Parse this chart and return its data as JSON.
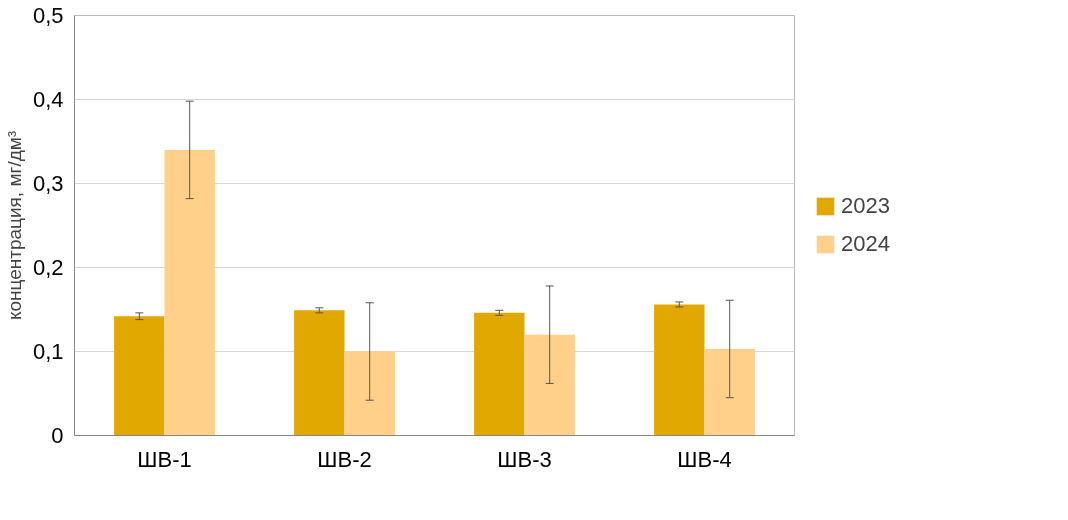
{
  "chart_data": {
    "type": "bar",
    "ylabel": "концентрация, мг/дм³",
    "categories": [
      "ШВ-1",
      "ШВ-2",
      "ШВ-3",
      "ШВ-4"
    ],
    "series": [
      {
        "name": "2023",
        "color": "#e0a800",
        "values": [
          0.142,
          0.149,
          0.146,
          0.156
        ],
        "errors": [
          0.004,
          0.003,
          0.003,
          0.003
        ]
      },
      {
        "name": "2024",
        "color": "#ffd08a",
        "values": [
          0.34,
          0.1,
          0.12,
          0.103
        ],
        "errors": [
          0.058,
          0.058,
          0.058,
          0.058
        ]
      }
    ],
    "ylim": [
      0,
      0.5
    ],
    "yticks": [
      0,
      {
        "value": 0.1,
        "label": "0,1"
      },
      {
        "value": 0.2,
        "label": "0,2"
      },
      {
        "value": 0.3,
        "label": "0,3"
      },
      {
        "value": 0.4,
        "label": "0,4"
      },
      {
        "value": 0.5,
        "label": "0,5"
      }
    ],
    "grid": "y",
    "legend": "right"
  }
}
